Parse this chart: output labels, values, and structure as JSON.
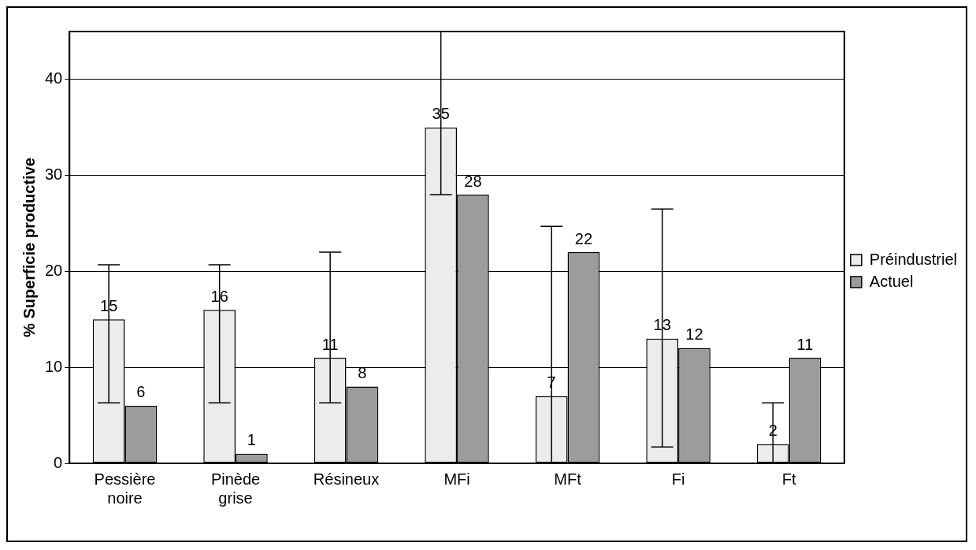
{
  "chart_data": {
    "type": "bar",
    "ylabel": "% Superficie productive",
    "categories": [
      "Pessière noire",
      "Pinède grise",
      "Résineux",
      "MFi",
      "MFt",
      "Fi",
      "Ft"
    ],
    "series": [
      {
        "name": "Préindustriel",
        "color": "#ececec",
        "values": [
          15,
          16,
          11,
          35,
          7,
          13,
          2
        ],
        "errors": [
          [
            6.3,
            20.7
          ],
          [
            6.3,
            20.7
          ],
          [
            6.3,
            22
          ],
          [
            28,
            45
          ],
          [
            0,
            24.7
          ],
          [
            1.7,
            26.5
          ],
          [
            0,
            6.3
          ]
        ]
      },
      {
        "name": "Actuel",
        "color": "#9c9c9c",
        "values": [
          6,
          1,
          8,
          28,
          22,
          12,
          11
        ]
      }
    ],
    "ylim": [
      0,
      45
    ],
    "yticks": [
      0,
      10,
      20,
      30,
      40
    ],
    "grid": "y",
    "legend": "right",
    "data_labels": true
  }
}
